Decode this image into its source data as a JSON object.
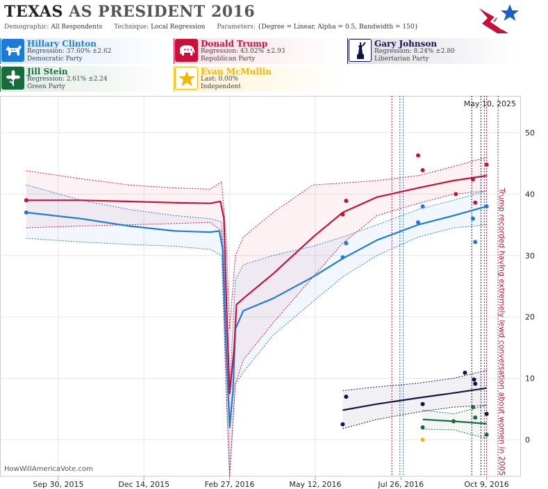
{
  "header": {
    "title_state": "TEXAS",
    "title_rest": "AS PRESIDENT 2016",
    "demographic_label": "Demographic:",
    "demographic_value": "All Respondents",
    "technique_label": "Technique:",
    "technique_value": "Local Regression",
    "parameters_label": "Parameters:",
    "parameters_value": "{Degree = Linear, Alpha = 0.5, Bandwidth = 150}"
  },
  "candidates": [
    {
      "name": "Hillary Clinton",
      "line1": "Regression: 37.60% ±2.62",
      "line2": "Democratic Party",
      "color": "#1c7ad8",
      "icon": "donkey-icon"
    },
    {
      "name": "Donald Trump",
      "line1": "Regression: 43.02% ±2.93",
      "line2": "Republican Party",
      "color": "#c8103a",
      "icon": "elephant-icon"
    },
    {
      "name": "Gary Johnson",
      "line1": "Regression: 8.24% ±2.80",
      "line2": "Libertarian Party",
      "color": "#12124a",
      "icon": "statue-of-liberty-icon"
    },
    {
      "name": "Jill Stein",
      "line1": "Regression: 2.61% ±2.24",
      "line2": "Green Party",
      "color": "#1a6b3c",
      "icon": "flower-icon"
    },
    {
      "name": "Evan McMullin",
      "line1": "Last: 0.00%",
      "line2": "Independent",
      "color": "#f2b705",
      "icon": "star-icon"
    }
  ],
  "chart_data": {
    "type": "line",
    "date_label": "May 10, 2025",
    "watermark": "HowWillAmericaVote.com",
    "annotation": "Trump recorded having extremely lewd conversation about women in 2005",
    "x_ticks": [
      "Sep 30, 2015",
      "Dec 14, 2015",
      "Feb 27, 2016",
      "May 12, 2016",
      "Jul 26, 2016",
      "Oct 9, 2016"
    ],
    "y_ticks": [
      0,
      10,
      20,
      30,
      40,
      50
    ],
    "ylim": [
      -6,
      56
    ],
    "xlim": [
      "2015-08-10",
      "2016-11-08"
    ],
    "grid": true,
    "event_lines": [
      {
        "date": "2016-07-18",
        "color": "#c8103a"
      },
      {
        "date": "2016-07-25",
        "color": "#1c7ad8"
      },
      {
        "date": "2016-07-28",
        "color": "#1c7ad8"
      },
      {
        "date": "2016-09-26",
        "color": "#12124a"
      },
      {
        "date": "2016-10-04",
        "color": "#12124a"
      },
      {
        "date": "2016-10-07",
        "color": "#c8103a"
      },
      {
        "date": "2016-10-09",
        "color": "#c8103a"
      },
      {
        "date": "2016-10-19",
        "color": "#c8103a"
      }
    ],
    "series": [
      {
        "name": "Hillary Clinton",
        "color": "#1c7ad8",
        "line": [
          [
            "2015-09-02",
            37.0
          ],
          [
            "2015-10-20",
            36.0
          ],
          [
            "2015-12-01",
            34.8
          ],
          [
            "2016-01-10",
            34.0
          ],
          [
            "2016-02-10",
            33.8
          ],
          [
            "2016-02-18",
            34.0
          ],
          [
            "2016-02-21",
            31.0
          ],
          [
            "2016-02-24",
            15.0
          ],
          [
            "2016-02-27",
            2.0
          ],
          [
            "2016-03-01",
            8.0
          ],
          [
            "2016-03-03",
            18.0
          ],
          [
            "2016-03-10",
            21.0
          ],
          [
            "2016-04-05",
            23.0
          ],
          [
            "2016-05-10",
            26.5
          ],
          [
            "2016-06-05",
            29.5
          ],
          [
            "2016-07-05",
            32.5
          ],
          [
            "2016-08-10",
            35.0
          ],
          [
            "2016-09-10",
            36.5
          ],
          [
            "2016-10-09",
            38.0
          ]
        ],
        "upper": [
          [
            "2015-09-02",
            41.5
          ],
          [
            "2015-10-20",
            39.0
          ],
          [
            "2015-12-01",
            37.5
          ],
          [
            "2016-01-10",
            36.5
          ],
          [
            "2016-02-10",
            36.0
          ],
          [
            "2016-02-20",
            35.5
          ],
          [
            "2016-02-24",
            22.0
          ],
          [
            "2016-02-27",
            8.0
          ],
          [
            "2016-03-03",
            26.0
          ],
          [
            "2016-03-10",
            28.5
          ],
          [
            "2016-04-05",
            30.0
          ],
          [
            "2016-05-10",
            31.5
          ],
          [
            "2016-06-05",
            33.0
          ],
          [
            "2016-07-05",
            35.0
          ],
          [
            "2016-08-10",
            37.5
          ],
          [
            "2016-09-10",
            39.0
          ],
          [
            "2016-10-09",
            40.5
          ]
        ],
        "lower": [
          [
            "2015-09-02",
            32.8
          ],
          [
            "2015-10-20",
            32.2
          ],
          [
            "2015-12-01",
            31.8
          ],
          [
            "2016-01-10",
            31.5
          ],
          [
            "2016-02-10",
            31.0
          ],
          [
            "2016-02-20",
            30.0
          ],
          [
            "2016-02-24",
            8.0
          ],
          [
            "2016-02-27",
            -6.0
          ],
          [
            "2016-03-03",
            9.0
          ],
          [
            "2016-03-10",
            11.0
          ],
          [
            "2016-04-05",
            17.0
          ],
          [
            "2016-05-10",
            22.5
          ],
          [
            "2016-06-05",
            26.5
          ],
          [
            "2016-07-05",
            30.0
          ],
          [
            "2016-08-10",
            33.0
          ],
          [
            "2016-09-10",
            34.5
          ],
          [
            "2016-10-09",
            35.0
          ]
        ],
        "points": [
          [
            "2015-09-02",
            37.0
          ],
          [
            "2016-06-05",
            29.7
          ],
          [
            "2016-06-08",
            32.0
          ],
          [
            "2016-08-10",
            35.4
          ],
          [
            "2016-08-14",
            38.0
          ],
          [
            "2016-09-27",
            36.0
          ],
          [
            "2016-09-29",
            32.2
          ],
          [
            "2016-10-09",
            38.0
          ]
        ]
      },
      {
        "name": "Donald Trump",
        "color": "#c8103a",
        "line": [
          [
            "2015-09-02",
            39.0
          ],
          [
            "2015-10-20",
            39.0
          ],
          [
            "2015-12-01",
            38.8
          ],
          [
            "2016-01-10",
            38.6
          ],
          [
            "2016-02-10",
            38.5
          ],
          [
            "2016-02-19",
            38.8
          ],
          [
            "2016-02-22",
            36.0
          ],
          [
            "2016-02-25",
            18.0
          ],
          [
            "2016-02-27",
            7.5
          ],
          [
            "2016-03-02",
            15.0
          ],
          [
            "2016-03-04",
            22.0
          ],
          [
            "2016-03-10",
            23.0
          ],
          [
            "2016-04-05",
            27.0
          ],
          [
            "2016-05-10",
            33.0
          ],
          [
            "2016-06-05",
            37.0
          ],
          [
            "2016-07-05",
            39.5
          ],
          [
            "2016-08-10",
            41.0
          ],
          [
            "2016-09-10",
            42.2
          ],
          [
            "2016-10-09",
            43.0
          ]
        ],
        "upper": [
          [
            "2015-09-02",
            43.8
          ],
          [
            "2015-10-20",
            42.5
          ],
          [
            "2015-12-01",
            41.5
          ],
          [
            "2016-01-10",
            41.0
          ],
          [
            "2016-02-10",
            40.8
          ],
          [
            "2016-02-20",
            42.0
          ],
          [
            "2016-02-24",
            33.0
          ],
          [
            "2016-02-27",
            18.0
          ],
          [
            "2016-03-03",
            30.0
          ],
          [
            "2016-03-10",
            33.0
          ],
          [
            "2016-04-05",
            37.0
          ],
          [
            "2016-05-10",
            41.5
          ],
          [
            "2016-06-05",
            41.8
          ],
          [
            "2016-07-05",
            42.2
          ],
          [
            "2016-08-10",
            43.0
          ],
          [
            "2016-09-10",
            44.5
          ],
          [
            "2016-10-09",
            46.0
          ]
        ],
        "lower": [
          [
            "2015-09-02",
            34.5
          ],
          [
            "2015-10-20",
            34.8
          ],
          [
            "2015-12-01",
            35.0
          ],
          [
            "2016-01-10",
            35.2
          ],
          [
            "2016-02-10",
            35.4
          ],
          [
            "2016-02-20",
            34.0
          ],
          [
            "2016-02-24",
            8.0
          ],
          [
            "2016-02-27",
            -6.0
          ],
          [
            "2016-03-03",
            9.0
          ],
          [
            "2016-03-10",
            13.0
          ],
          [
            "2016-04-05",
            19.0
          ],
          [
            "2016-05-10",
            26.5
          ],
          [
            "2016-06-05",
            32.0
          ],
          [
            "2016-07-05",
            36.5
          ],
          [
            "2016-08-10",
            38.5
          ],
          [
            "2016-09-10",
            40.0
          ],
          [
            "2016-10-09",
            40.5
          ]
        ],
        "points": [
          [
            "2015-09-02",
            39.0
          ],
          [
            "2016-06-05",
            36.7
          ],
          [
            "2016-06-08",
            38.9
          ],
          [
            "2016-08-10",
            46.3
          ],
          [
            "2016-08-14",
            43.9
          ],
          [
            "2016-09-12",
            40.0
          ],
          [
            "2016-09-27",
            42.4
          ],
          [
            "2016-09-29",
            38.6
          ],
          [
            "2016-10-09",
            44.8
          ]
        ]
      },
      {
        "name": "Gary Johnson",
        "color": "#12124a",
        "line": [
          [
            "2016-06-05",
            4.8
          ],
          [
            "2016-07-05",
            5.8
          ],
          [
            "2016-08-10",
            6.8
          ],
          [
            "2016-09-10",
            7.6
          ],
          [
            "2016-10-09",
            8.4
          ]
        ],
        "upper": [
          [
            "2016-06-05",
            8.0
          ],
          [
            "2016-07-05",
            8.6
          ],
          [
            "2016-08-10",
            9.2
          ],
          [
            "2016-09-10",
            10.0
          ],
          [
            "2016-10-09",
            11.3
          ]
        ],
        "lower": [
          [
            "2016-06-05",
            1.8
          ],
          [
            "2016-07-05",
            3.3
          ],
          [
            "2016-08-10",
            4.5
          ],
          [
            "2016-09-10",
            5.3
          ],
          [
            "2016-10-09",
            5.6
          ]
        ],
        "points": [
          [
            "2016-06-05",
            2.5
          ],
          [
            "2016-06-08",
            7.0
          ],
          [
            "2016-08-14",
            5.8
          ],
          [
            "2016-09-20",
            10.9
          ],
          [
            "2016-09-28",
            9.8
          ],
          [
            "2016-09-29",
            9.1
          ],
          [
            "2016-10-09",
            4.2
          ]
        ]
      },
      {
        "name": "Jill Stein",
        "color": "#1a6b3c",
        "line": [
          [
            "2016-08-14",
            3.3
          ],
          [
            "2016-09-10",
            3.0
          ],
          [
            "2016-10-09",
            2.6
          ]
        ],
        "upper": [
          [
            "2016-08-14",
            4.8
          ],
          [
            "2016-09-10",
            4.2
          ],
          [
            "2016-10-09",
            5.6
          ]
        ],
        "lower": [
          [
            "2016-08-14",
            1.7
          ],
          [
            "2016-09-10",
            1.6
          ],
          [
            "2016-10-09",
            0.2
          ]
        ],
        "points": [
          [
            "2016-08-14",
            2.0
          ],
          [
            "2016-09-10",
            3.0
          ],
          [
            "2016-09-27",
            5.3
          ],
          [
            "2016-09-29",
            3.6
          ],
          [
            "2016-10-09",
            0.8
          ]
        ]
      },
      {
        "name": "Evan McMullin",
        "color": "#f2b705",
        "line": [],
        "upper": [],
        "lower": [],
        "points": [
          [
            "2016-08-14",
            0.0
          ]
        ]
      }
    ]
  }
}
